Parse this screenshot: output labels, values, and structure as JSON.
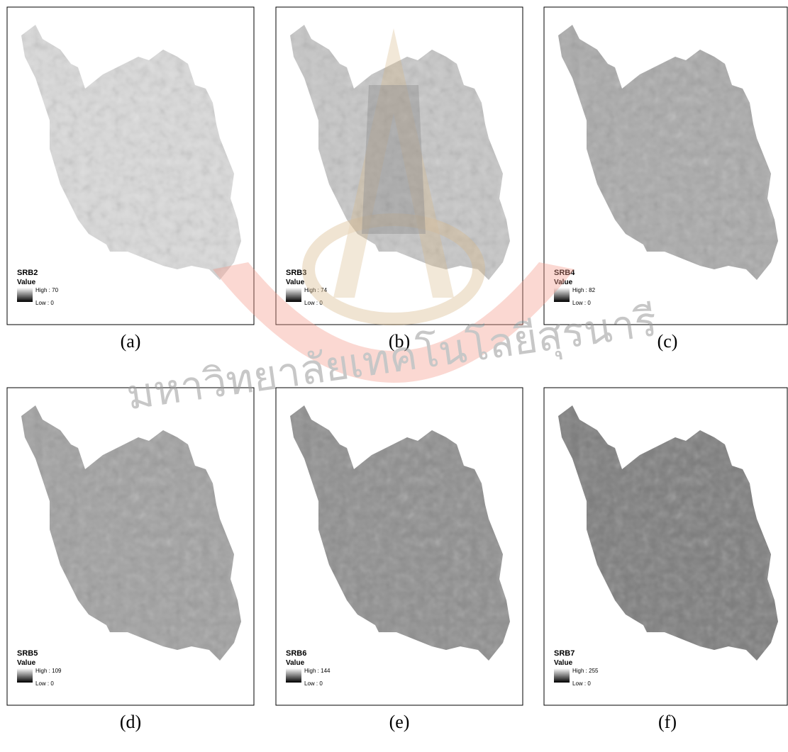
{
  "panels": [
    {
      "title": "SRB2",
      "legend_label": "Value",
      "high": "High : 70",
      "low": "Low : 0",
      "caption": "(a)"
    },
    {
      "title": "SRB3",
      "legend_label": "Value",
      "high": "High : 74",
      "low": "Low : 0",
      "caption": "(b)"
    },
    {
      "title": "SRB4",
      "legend_label": "Value",
      "high": "High : 82",
      "low": "Low : 0",
      "caption": "(c)"
    },
    {
      "title": "SRB5",
      "legend_label": "Value",
      "high": "High : 109",
      "low": "Low : 0",
      "caption": "(d)"
    },
    {
      "title": "SRB6",
      "legend_label": "Value",
      "high": "High : 144",
      "low": "Low : 0",
      "caption": "(e)"
    },
    {
      "title": "SRB7",
      "legend_label": "Value",
      "high": "High : 255",
      "low": "Low : 0",
      "caption": "(f)"
    }
  ],
  "watermark": "มหาวิทยาลัยเทคโนโลยีสุรนารี"
}
